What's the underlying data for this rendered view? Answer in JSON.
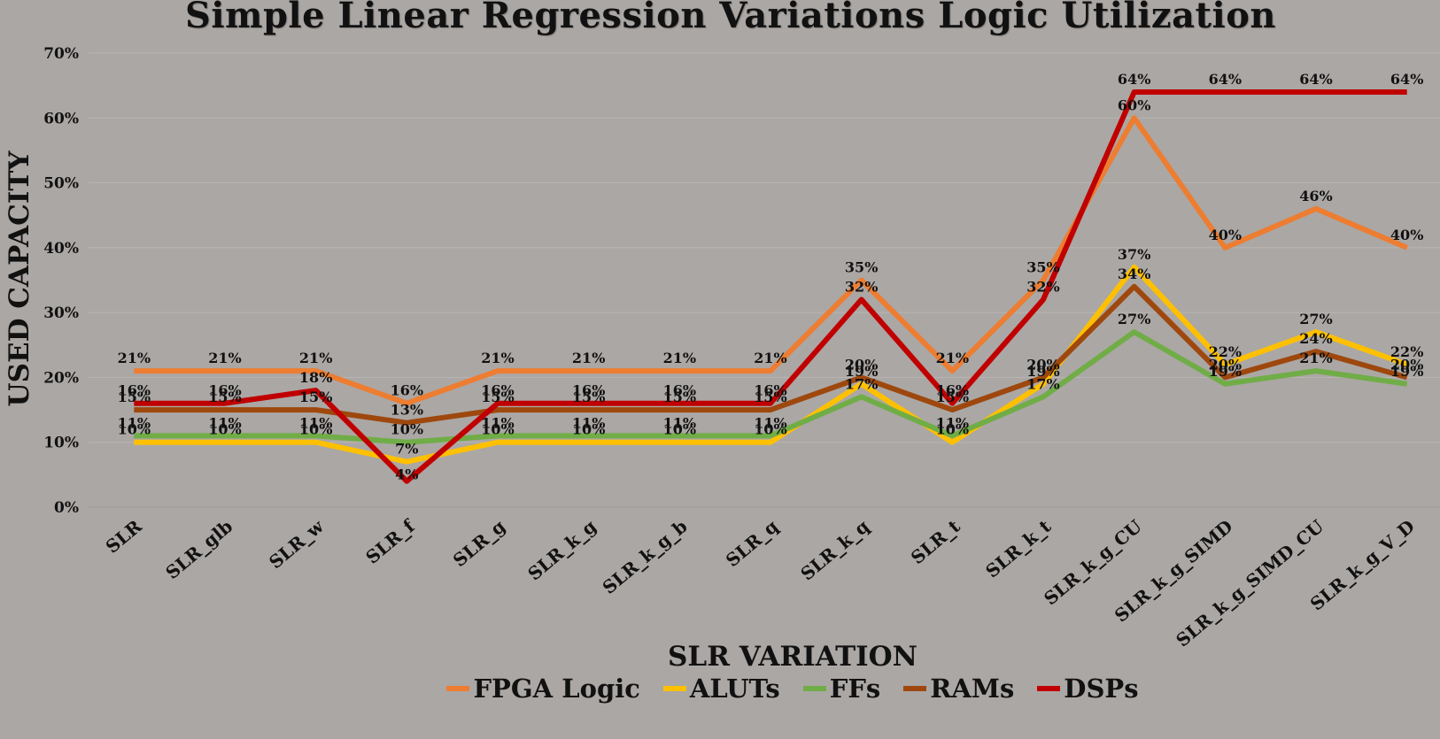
{
  "chart_data": {
    "type": "line",
    "title": "Simple Linear Regression Variations Logic Utilization",
    "xlabel": "SLR VARIATION",
    "ylabel": "USED CAPACITY",
    "categories": [
      "SLR",
      "SLR_glb",
      "SLR_w",
      "SLR_f",
      "SLR_g",
      "SLR_k_g",
      "SLR_k_g_b",
      "SLR_q",
      "SLR_k_q",
      "SLR_t",
      "SLR_k_t",
      "SLR_k_g_CU",
      "SLR_k_g_SIMD",
      "SLR_k_g_SIMD_CU",
      "SLR_k_g_V_D"
    ],
    "ylim": [
      0,
      70
    ],
    "yticks": [
      "0%",
      "10%",
      "20%",
      "30%",
      "40%",
      "50%",
      "60%",
      "70%"
    ],
    "grid": true,
    "legend_position": "bottom",
    "series": [
      {
        "name": "FPGA Logic",
        "color": "#ed7d31",
        "values": [
          21,
          21,
          21,
          16,
          21,
          21,
          21,
          21,
          35,
          21,
          35,
          60,
          40,
          46,
          40
        ]
      },
      {
        "name": "ALUTs",
        "color": "#ffc000",
        "values": [
          10,
          10,
          10,
          7,
          10,
          10,
          10,
          10,
          19,
          10,
          19,
          37,
          22,
          27,
          22
        ]
      },
      {
        "name": "FFs",
        "color": "#70ad47",
        "values": [
          11,
          11,
          11,
          10,
          11,
          11,
          11,
          11,
          17,
          11,
          17,
          27,
          19,
          21,
          19
        ]
      },
      {
        "name": "RAMs",
        "color": "#9e480e",
        "values": [
          15,
          15,
          15,
          13,
          15,
          15,
          15,
          15,
          20,
          15,
          20,
          34,
          20,
          24,
          20
        ]
      },
      {
        "name": "DSPs",
        "color": "#c00000",
        "values": [
          16,
          16,
          18,
          4,
          16,
          16,
          16,
          16,
          32,
          16,
          32,
          64,
          64,
          64,
          64
        ]
      }
    ]
  }
}
